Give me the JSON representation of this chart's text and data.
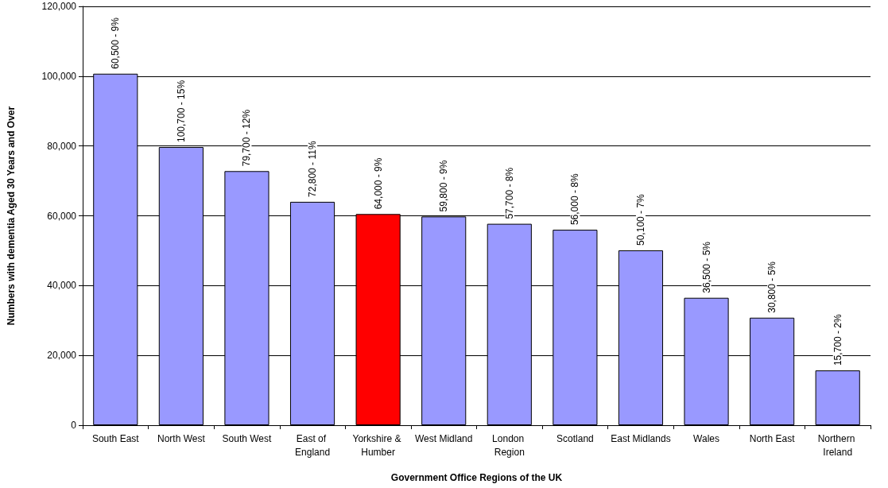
{
  "chart_data": {
    "type": "bar",
    "xlabel": "Government Office Regions of the UK",
    "ylabel": "Numbers with dementia Aged 30 Years and Over",
    "categories": [
      "South East",
      "North West",
      "South West",
      "East of England",
      "Yorkshire & Humber",
      "West Midland",
      "London Region",
      "Scotland",
      "East Midlands",
      "Wales",
      "North East",
      "Northern Ireland"
    ],
    "values": [
      100700,
      79700,
      72800,
      64000,
      60500,
      59800,
      57700,
      56000,
      50100,
      36500,
      30800,
      15700
    ],
    "colors": [
      "#9999ff",
      "#9999ff",
      "#9999ff",
      "#9999ff",
      "#ff0000",
      "#9999ff",
      "#9999ff",
      "#9999ff",
      "#9999ff",
      "#9999ff",
      "#9999ff",
      "#9999ff"
    ],
    "annotations": [
      {
        "text": "60,500 - 9%",
        "x": "South East",
        "y": 100700
      },
      {
        "text": "100,700 - 15%",
        "x": "North West",
        "y": 79700
      },
      {
        "text": "79,700 - 12%",
        "x": "South West",
        "y": 72800
      },
      {
        "text": "72,800 - 11%",
        "x": "East of England",
        "y": 64000
      },
      {
        "text": "64,000 - 9%",
        "x": "Yorkshire & Humber",
        "y": 60500
      },
      {
        "text": "59,800 - 9%",
        "x": "West Midland",
        "y": 59800
      },
      {
        "text": "57,700 - 8%",
        "x": "London Region",
        "y": 57700
      },
      {
        "text": "56,000 - 8%",
        "x": "Scotland",
        "y": 56000
      },
      {
        "text": "50,100 - 7%",
        "x": "East Midlands",
        "y": 50100
      },
      {
        "text": "36,500 - 5%",
        "x": "Wales",
        "y": 36500
      },
      {
        "text": "30,800 - 5%",
        "x": "North East",
        "y": 30800
      },
      {
        "text": "15,700 - 2%",
        "x": "Northern Ireland",
        "y": 15700
      }
    ],
    "ylim": [
      0,
      120000
    ],
    "yticks": [
      {
        "value": 0,
        "label": "0"
      },
      {
        "value": 20000,
        "label": "20,000"
      },
      {
        "value": 40000,
        "label": "40,000"
      },
      {
        "value": 60000,
        "label": "60,000"
      },
      {
        "value": 80000,
        "label": "80,000"
      },
      {
        "value": 100000,
        "label": "100,000"
      },
      {
        "value": 120000,
        "label": "120,000"
      }
    ],
    "grid": "y"
  }
}
